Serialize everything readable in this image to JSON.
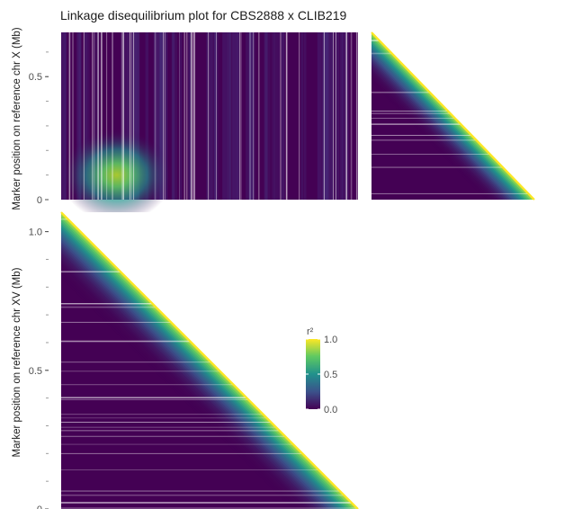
{
  "chart_data": {
    "type": "heatmap",
    "title": "Linkage disequilibrium plot for CBS2888 x CLIB219",
    "colormap": "viridis",
    "panels": [
      {
        "name": "chr X vs chr X",
        "kind": "triangle",
        "ylabel": "Marker position on reference chr X (Mb)",
        "yticks": [
          {
            "value": 0,
            "label": "0"
          },
          {
            "value": 0.5,
            "label": "0.5"
          }
        ],
        "ylim": [
          0,
          0.68
        ]
      },
      {
        "name": "chr X vs chr XV",
        "kind": "rectangle",
        "hotspot": {
          "chrXV_Mb": 0.2,
          "chrX_Mb": 0.1,
          "r2": 0.75
        }
      },
      {
        "name": "chr XV vs chr XV",
        "kind": "triangle",
        "ylabel": "Marker position on reference chr XV (Mb)",
        "yticks": [
          {
            "value": 0,
            "label": "0"
          },
          {
            "value": 0.5,
            "label": "0.5"
          },
          {
            "value": 1.0,
            "label": "1.0"
          }
        ],
        "ylim": [
          0,
          1.07
        ]
      }
    ],
    "legend": {
      "title": "r²",
      "position": "right",
      "ticks": [
        {
          "value": 1.0,
          "label": "1.0"
        },
        {
          "value": 0.5,
          "label": "0.5"
        },
        {
          "value": 0.0,
          "label": "0.0"
        }
      ],
      "range": [
        0,
        1
      ]
    },
    "grid": false
  }
}
